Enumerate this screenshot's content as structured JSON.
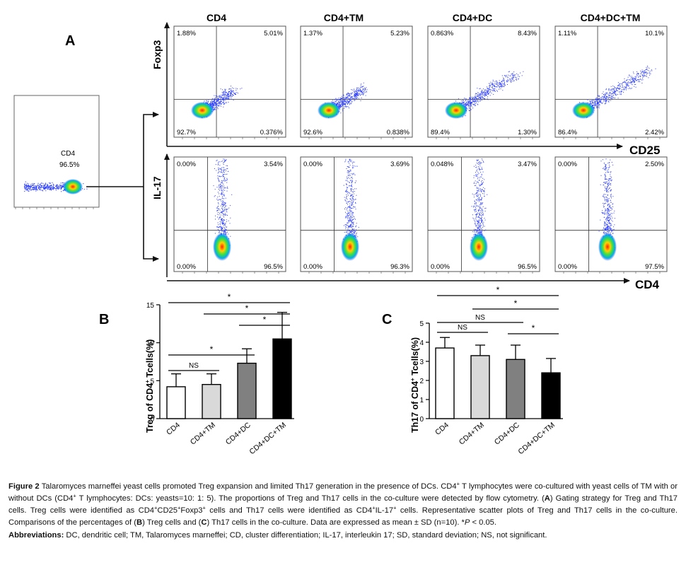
{
  "panel_letters": {
    "a": "A",
    "b": "B",
    "c": "C"
  },
  "gating": {
    "label": "CD4",
    "value": "96.5%"
  },
  "column_titles": [
    "CD4",
    "CD4+TM",
    "CD4+DC",
    "CD4+DC+TM"
  ],
  "row_axis_labels": {
    "foxp3": "Foxp3",
    "il17": "IL-17"
  },
  "x_axis_labels": {
    "cd25": "CD25",
    "cd4": "CD4"
  },
  "foxp3_quadrants": [
    {
      "ul": "1.88%",
      "ur": "5.01%",
      "ll": "92.7%",
      "lr": "0.376%"
    },
    {
      "ul": "1.37%",
      "ur": "5.23%",
      "ll": "92.6%",
      "lr": "0.838%"
    },
    {
      "ul": "0.863%",
      "ur": "8.43%",
      "ll": "89.4%",
      "lr": "1.30%"
    },
    {
      "ul": "1.11%",
      "ur": "10.1%",
      "ll": "86.4%",
      "lr": "2.42%"
    }
  ],
  "il17_quadrants": [
    {
      "ul": "0.00%",
      "ur": "3.54%",
      "ll": "0.00%",
      "lr": "96.5%"
    },
    {
      "ul": "0.00%",
      "ur": "3.69%",
      "ll": "0.00%",
      "lr": "96.3%"
    },
    {
      "ul": "0.048%",
      "ur": "3.47%",
      "ll": "0.00%",
      "lr": "96.5%"
    },
    {
      "ul": "0.00%",
      "ur": "2.50%",
      "ll": "0.00%",
      "lr": "97.5%"
    }
  ],
  "chart_data": [
    {
      "type": "bar",
      "panel": "B",
      "title": "",
      "ylabel_main": "Treg of CD4",
      "ylabel_sup": "+",
      "ylabel_end": " Tcells(%)",
      "xlabel": "",
      "categories": [
        "CD4",
        "CD4+TM",
        "CD4+DC",
        "CD4+DC+TM"
      ],
      "values": [
        4.2,
        4.5,
        7.3,
        10.5
      ],
      "errors": [
        1.7,
        1.4,
        1.9,
        3.5
      ],
      "bar_colors": [
        "#ffffff",
        "#d9d9d9",
        "#808080",
        "#000000"
      ],
      "ylim": [
        0,
        15
      ],
      "yticks": [
        0,
        5,
        10,
        15
      ],
      "significance": [
        {
          "from": 0,
          "to": 3,
          "label": "*"
        },
        {
          "from": 1,
          "to": 3,
          "label": "*"
        },
        {
          "from": 2,
          "to": 3,
          "label": "*"
        },
        {
          "from": 0,
          "to": 2,
          "label": "*"
        },
        {
          "from": 0,
          "to": 1,
          "label": "NS"
        }
      ]
    },
    {
      "type": "bar",
      "panel": "C",
      "title": "",
      "ylabel_main": "Th17 of CD4",
      "ylabel_sup": "+",
      "ylabel_end": " Tcells(%)",
      "xlabel": "",
      "categories": [
        "CD4",
        "CD4+TM",
        "CD4+DC",
        "CD4+DC+TM"
      ],
      "values": [
        3.7,
        3.3,
        3.1,
        2.4
      ],
      "errors": [
        0.55,
        0.55,
        0.75,
        0.75
      ],
      "bar_colors": [
        "#ffffff",
        "#d9d9d9",
        "#808080",
        "#000000"
      ],
      "ylim": [
        0,
        5
      ],
      "yticks": [
        0,
        1,
        2,
        3,
        4,
        5
      ],
      "significance": [
        {
          "from": 0,
          "to": 3,
          "label": "*"
        },
        {
          "from": 1,
          "to": 3,
          "label": "*"
        },
        {
          "from": 0,
          "to": 2,
          "label": "NS"
        },
        {
          "from": 0,
          "to": 1,
          "label": "NS"
        },
        {
          "from": 2,
          "to": 3,
          "label": "*"
        }
      ]
    }
  ],
  "caption": {
    "fig_label": "Figure 2",
    "t1": " Talaromyces marneffei yeast cells promoted Treg expansion and limited Th17 generation in the presence of DCs. CD4",
    "t2": " T lymphocytes were co-cultured with yeast cells of TM with or without DCs (CD4",
    "t3": " T lymphocytes: DCs: yeasts=10: 1: 5). The proportions of Treg and Th17 cells in the co-culture were detected by flow cytometry. (",
    "t4": ") Gating strategy for Treg and Th17 cells. Treg cells were identified as CD4",
    "t5": "CD25",
    "t6": "Foxp3",
    "t7": " cells and Th17 cells were identified as CD4",
    "t8": "IL-17",
    "t9": " cells. Representative scatter plots of Treg and Th17 cells in the co-culture. Comparisons of the percentages of (",
    "t10": ") Treg cells and (",
    "t11": ") Th17 cells in the co-culture. Data are expressed as mean ± SD (n=10). *",
    "p": "P",
    "t12": " < 0.05.",
    "sup_plus": "+",
    "letter_a": "A",
    "letter_b": "B",
    "letter_c": "C",
    "abbr_label": "Abbreviations:",
    "abbr_text": " DC, dendritic cell; TM, Talaromyces marneffei; CD, cluster differentiation; IL-17, interleukin 17; SD, standard deviation; NS, not significant."
  }
}
